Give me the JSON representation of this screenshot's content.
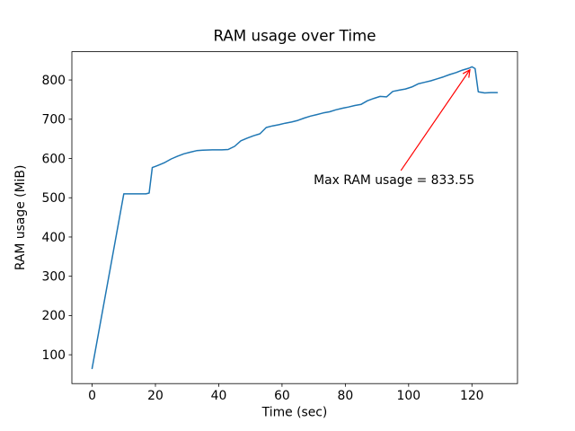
{
  "figure": {
    "background_color": "#ffffff",
    "axes_edge_color": "#000000"
  },
  "chart_data": {
    "type": "line",
    "title": "RAM usage over Time",
    "xlabel": "Time (sec)",
    "ylabel": "RAM usage (MiB)",
    "xlim": [
      -6.4,
      134.4
    ],
    "ylim": [
      26.6,
      872.0
    ],
    "x_ticks": [
      0,
      20,
      40,
      60,
      80,
      100,
      120
    ],
    "y_ticks": [
      100,
      200,
      300,
      400,
      500,
      600,
      700,
      800
    ],
    "grid": false,
    "legend_position": "none",
    "series": [
      {
        "name": "RAM usage",
        "color": "#1f77b4",
        "line_width": 1.5,
        "points": [
          [
            0,
            65
          ],
          [
            10,
            510
          ],
          [
            17,
            510
          ],
          [
            18,
            512
          ],
          [
            19,
            577
          ],
          [
            20,
            580
          ],
          [
            21,
            583
          ],
          [
            23,
            590
          ],
          [
            25,
            599
          ],
          [
            27,
            606
          ],
          [
            29,
            612
          ],
          [
            31,
            616
          ],
          [
            33,
            620
          ],
          [
            35,
            621
          ],
          [
            38,
            622
          ],
          [
            41,
            622
          ],
          [
            43,
            623
          ],
          [
            45,
            631
          ],
          [
            47,
            645
          ],
          [
            49,
            652
          ],
          [
            51,
            658
          ],
          [
            53,
            663
          ],
          [
            55,
            679
          ],
          [
            57,
            683
          ],
          [
            59,
            686
          ],
          [
            61,
            690
          ],
          [
            63,
            693
          ],
          [
            65,
            697
          ],
          [
            67,
            703
          ],
          [
            69,
            708
          ],
          [
            71,
            712
          ],
          [
            73,
            716
          ],
          [
            75,
            719
          ],
          [
            77,
            724
          ],
          [
            79,
            728
          ],
          [
            81,
            731
          ],
          [
            83,
            735
          ],
          [
            85,
            738
          ],
          [
            87,
            747
          ],
          [
            89,
            753
          ],
          [
            91,
            758
          ],
          [
            93,
            757
          ],
          [
            95,
            771
          ],
          [
            97,
            774
          ],
          [
            99,
            777
          ],
          [
            101,
            782
          ],
          [
            103,
            790
          ],
          [
            105,
            794
          ],
          [
            107,
            798
          ],
          [
            109,
            803
          ],
          [
            111,
            808
          ],
          [
            113,
            814
          ],
          [
            115,
            819
          ],
          [
            117,
            825
          ],
          [
            119,
            830
          ],
          [
            120,
            833.55
          ],
          [
            121,
            829
          ],
          [
            122,
            770
          ],
          [
            124,
            767
          ],
          [
            126,
            768
          ],
          [
            128,
            768
          ]
        ]
      }
    ],
    "annotation": {
      "text": "Max RAM usage = 833.55",
      "color": "#ff0000",
      "xy": [
        120,
        833.55
      ],
      "xytext": [
        70,
        535
      ]
    }
  }
}
